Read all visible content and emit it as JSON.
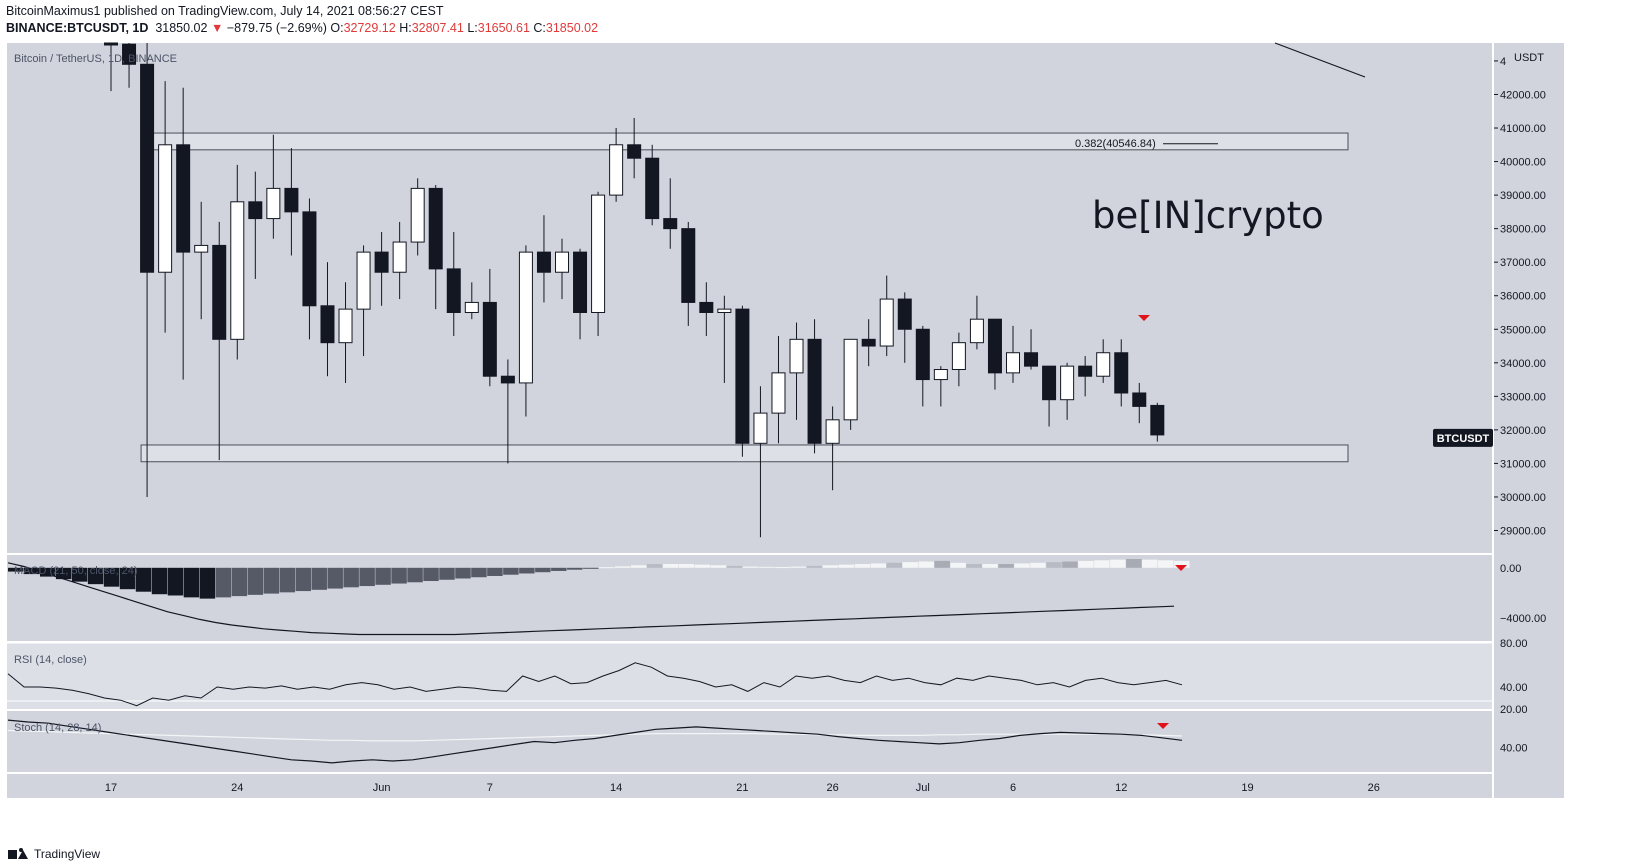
{
  "header": {
    "publisher": "BitcoinMaximus1",
    "published_line": " published on TradingView.com, July 14, 2021 08:56:27 CEST",
    "symbol": "BINANCE:BTCUSDT, 1D",
    "last": "31850.02",
    "change": "−879.75 (−2.69%)",
    "o_label": "O:",
    "o_value": "32729.12",
    "h_label": "H:",
    "h_value": "32807.41",
    "l_label": "L:",
    "l_value": "31650.61",
    "c_label": "C:",
    "c_value": "31850.02"
  },
  "chart_data": {
    "type": "candlestick",
    "title": "Bitcoin / TetherUS, 1D, BINANCE",
    "currency_label": "USDT",
    "price_badge": "BTCUSDT",
    "watermark": "be[IN]crypto",
    "fib_label": "0.382(40546.84)",
    "x_tick_labels": [
      "17",
      "24",
      "Jun",
      "7",
      "14",
      "21",
      "26",
      "Jul",
      "6",
      "12",
      "19",
      "26"
    ],
    "y_tick_labels": [
      "29000.00",
      "30000.00",
      "31000.00",
      "32000.00",
      "33000.00",
      "34000.00",
      "35000.00",
      "36000.00",
      "37000.00",
      "38000.00",
      "39000.00",
      "40000.00",
      "41000.00",
      "42000.00",
      "4"
    ],
    "ylim": [
      28500,
      43500
    ],
    "candles": [
      {
        "date": "2021-05-17",
        "o": 46400,
        "h": 46600,
        "l": 42100,
        "c": 43500
      },
      {
        "date": "2021-05-18",
        "o": 43500,
        "h": 45800,
        "l": 42200,
        "c": 42900
      },
      {
        "date": "2021-05-19",
        "o": 42900,
        "h": 43600,
        "l": 30000,
        "c": 36700
      },
      {
        "date": "2021-05-20",
        "o": 36700,
        "h": 42400,
        "l": 34900,
        "c": 40500
      },
      {
        "date": "2021-05-21",
        "o": 40500,
        "h": 42200,
        "l": 33500,
        "c": 37300
      },
      {
        "date": "2021-05-22",
        "o": 37300,
        "h": 38800,
        "l": 35300,
        "c": 37500
      },
      {
        "date": "2021-05-23",
        "o": 37500,
        "h": 38200,
        "l": 31100,
        "c": 34700
      },
      {
        "date": "2021-05-24",
        "o": 34700,
        "h": 39900,
        "l": 34100,
        "c": 38800
      },
      {
        "date": "2021-05-25",
        "o": 38800,
        "h": 39700,
        "l": 36500,
        "c": 38300
      },
      {
        "date": "2021-05-26",
        "o": 38300,
        "h": 40800,
        "l": 37700,
        "c": 39200
      },
      {
        "date": "2021-05-27",
        "o": 39200,
        "h": 40400,
        "l": 37200,
        "c": 38500
      },
      {
        "date": "2021-05-28",
        "o": 38500,
        "h": 38900,
        "l": 34700,
        "c": 35700
      },
      {
        "date": "2021-05-29",
        "o": 35700,
        "h": 37000,
        "l": 33600,
        "c": 34600
      },
      {
        "date": "2021-05-30",
        "o": 34600,
        "h": 36400,
        "l": 33400,
        "c": 35600
      },
      {
        "date": "2021-05-31",
        "o": 35600,
        "h": 37500,
        "l": 34200,
        "c": 37300
      },
      {
        "date": "2021-06-01",
        "o": 37300,
        "h": 37900,
        "l": 35700,
        "c": 36700
      },
      {
        "date": "2021-06-02",
        "o": 36700,
        "h": 38200,
        "l": 35900,
        "c": 37600
      },
      {
        "date": "2021-06-03",
        "o": 37600,
        "h": 39500,
        "l": 37200,
        "c": 39200
      },
      {
        "date": "2021-06-04",
        "o": 39200,
        "h": 39300,
        "l": 35600,
        "c": 36800
      },
      {
        "date": "2021-06-05",
        "o": 36800,
        "h": 37900,
        "l": 34800,
        "c": 35500
      },
      {
        "date": "2021-06-06",
        "o": 35500,
        "h": 36400,
        "l": 35300,
        "c": 35800
      },
      {
        "date": "2021-06-07",
        "o": 35800,
        "h": 36800,
        "l": 33300,
        "c": 33600
      },
      {
        "date": "2021-06-08",
        "o": 33600,
        "h": 34100,
        "l": 31000,
        "c": 33400
      },
      {
        "date": "2021-06-09",
        "o": 33400,
        "h": 37500,
        "l": 32400,
        "c": 37300
      },
      {
        "date": "2021-06-10",
        "o": 37300,
        "h": 38400,
        "l": 35800,
        "c": 36700
      },
      {
        "date": "2021-06-11",
        "o": 36700,
        "h": 37700,
        "l": 35900,
        "c": 37300
      },
      {
        "date": "2021-06-12",
        "o": 37300,
        "h": 37400,
        "l": 34700,
        "c": 35500
      },
      {
        "date": "2021-06-13",
        "o": 35500,
        "h": 39100,
        "l": 34800,
        "c": 39000
      },
      {
        "date": "2021-06-14",
        "o": 39000,
        "h": 41000,
        "l": 38800,
        "c": 40500
      },
      {
        "date": "2021-06-15",
        "o": 40500,
        "h": 41300,
        "l": 39500,
        "c": 40100
      },
      {
        "date": "2021-06-16",
        "o": 40100,
        "h": 40500,
        "l": 38100,
        "c": 38300
      },
      {
        "date": "2021-06-17",
        "o": 38300,
        "h": 39500,
        "l": 37400,
        "c": 38000
      },
      {
        "date": "2021-06-18",
        "o": 38000,
        "h": 38200,
        "l": 35100,
        "c": 35800
      },
      {
        "date": "2021-06-19",
        "o": 35800,
        "h": 36400,
        "l": 34800,
        "c": 35500
      },
      {
        "date": "2021-06-20",
        "o": 35500,
        "h": 36000,
        "l": 33400,
        "c": 35600
      },
      {
        "date": "2021-06-21",
        "o": 35600,
        "h": 35700,
        "l": 31200,
        "c": 31600
      },
      {
        "date": "2021-06-22",
        "o": 31600,
        "h": 33300,
        "l": 28800,
        "c": 32500
      },
      {
        "date": "2021-06-23",
        "o": 32500,
        "h": 34800,
        "l": 31600,
        "c": 33700
      },
      {
        "date": "2021-06-24",
        "o": 33700,
        "h": 35200,
        "l": 32300,
        "c": 34700
      },
      {
        "date": "2021-06-25",
        "o": 34700,
        "h": 35300,
        "l": 31300,
        "c": 31600
      },
      {
        "date": "2021-06-26",
        "o": 31600,
        "h": 32700,
        "l": 30200,
        "c": 32300
      },
      {
        "date": "2021-06-27",
        "o": 32300,
        "h": 34700,
        "l": 32000,
        "c": 34700
      },
      {
        "date": "2021-06-28",
        "o": 34700,
        "h": 35300,
        "l": 33900,
        "c": 34500
      },
      {
        "date": "2021-06-29",
        "o": 34500,
        "h": 36600,
        "l": 34200,
        "c": 35900
      },
      {
        "date": "2021-06-30",
        "o": 35900,
        "h": 36100,
        "l": 34000,
        "c": 35000
      },
      {
        "date": "2021-07-01",
        "o": 35000,
        "h": 35100,
        "l": 32700,
        "c": 33500
      },
      {
        "date": "2021-07-02",
        "o": 33500,
        "h": 33900,
        "l": 32700,
        "c": 33800
      },
      {
        "date": "2021-07-03",
        "o": 33800,
        "h": 34900,
        "l": 33300,
        "c": 34600
      },
      {
        "date": "2021-07-04",
        "o": 34600,
        "h": 36000,
        "l": 34400,
        "c": 35300
      },
      {
        "date": "2021-07-05",
        "o": 35300,
        "h": 35300,
        "l": 33200,
        "c": 33700
      },
      {
        "date": "2021-07-06",
        "o": 33700,
        "h": 35100,
        "l": 33400,
        "c": 34300
      },
      {
        "date": "2021-07-07",
        "o": 34300,
        "h": 35000,
        "l": 33800,
        "c": 33900
      },
      {
        "date": "2021-07-08",
        "o": 33900,
        "h": 33900,
        "l": 32100,
        "c": 32900
      },
      {
        "date": "2021-07-09",
        "o": 32900,
        "h": 34000,
        "l": 32300,
        "c": 33900
      },
      {
        "date": "2021-07-10",
        "o": 33900,
        "h": 34200,
        "l": 33000,
        "c": 33600
      },
      {
        "date": "2021-07-11",
        "o": 33600,
        "h": 34700,
        "l": 33400,
        "c": 34300
      },
      {
        "date": "2021-07-12",
        "o": 34300,
        "h": 34700,
        "l": 32700,
        "c": 33100
      },
      {
        "date": "2021-07-13",
        "o": 33100,
        "h": 33400,
        "l": 32200,
        "c": 32700
      },
      {
        "date": "2021-07-14",
        "o": 32729.12,
        "h": 32807.41,
        "l": 31650.61,
        "c": 31850.02
      }
    ],
    "zones": [
      {
        "name": "resistance",
        "from": 40350,
        "to": 40850
      },
      {
        "name": "support",
        "from": 31050,
        "to": 31550
      }
    ],
    "fib_level": 40546.84,
    "macd": {
      "label": "MACD (21, 50, close, 24)",
      "tick_labels": [
        "0.00",
        "−4000.00"
      ],
      "range": [
        -5500,
        700
      ],
      "hist": [
        -300,
        -500,
        -700,
        -900,
        -1100,
        -1300,
        -1500,
        -1700,
        -1900,
        -2100,
        -2200,
        -2350,
        -2450,
        -2350,
        -2250,
        -2150,
        -2050,
        -1950,
        -1850,
        -1750,
        -1650,
        -1550,
        -1450,
        -1350,
        -1250,
        -1150,
        -1050,
        -950,
        -850,
        -750,
        -650,
        -550,
        -450,
        -350,
        -250,
        -150,
        -50,
        50,
        120,
        200,
        300,
        300,
        300,
        250,
        200,
        150,
        100,
        80,
        60,
        100,
        150,
        200,
        250,
        300,
        350,
        400,
        450,
        500,
        550,
        400,
        300,
        300,
        300,
        350,
        400,
        450,
        500,
        550,
        600,
        650,
        700,
        650,
        600,
        550
      ],
      "signal": [
        400,
        100,
        -300,
        -700,
        -1100,
        -1500,
        -1900,
        -2300,
        -2700,
        -3100,
        -3500,
        -3800,
        -4100,
        -4350,
        -4550,
        -4700,
        -4850,
        -4950,
        -5050,
        -5150,
        -5200,
        -5250,
        -5300,
        -5300,
        -5300,
        -5300,
        -5300,
        -5300,
        -5300,
        -5250,
        -5200,
        -5150,
        -5100,
        -5050,
        -5000,
        -4950,
        -4900,
        -4850,
        -4800,
        -4750,
        -4700,
        -4650,
        -4600,
        -4550,
        -4500,
        -4450,
        -4400,
        -4350,
        -4300,
        -4250,
        -4200,
        -4150,
        -4100,
        -4050,
        -4000,
        -3950,
        -3900,
        -3850,
        -3800,
        -3750,
        -3700,
        -3650,
        -3600,
        -3550,
        -3500,
        -3450,
        -3400,
        -3350,
        -3300,
        -3250,
        -3200,
        -3150,
        -3100,
        -3050
      ]
    },
    "rsi": {
      "label": "RSI (14, close)",
      "tick_labels": [
        "80.00",
        "40.00",
        "20.00"
      ],
      "range": [
        20,
        80
      ],
      "values": [
        52,
        40,
        40,
        39,
        37,
        34,
        30,
        28,
        23,
        30,
        28,
        32,
        30,
        40,
        38,
        40,
        39,
        41,
        38,
        40,
        38,
        42,
        44,
        42,
        38,
        40,
        36,
        38,
        40,
        39,
        37,
        36,
        50,
        45,
        50,
        43,
        44,
        50,
        55,
        62,
        58,
        50,
        48,
        45,
        40,
        42,
        36,
        44,
        40,
        50,
        48,
        50,
        46,
        44,
        50,
        46,
        48,
        44,
        42,
        48,
        46,
        50,
        48,
        46,
        42,
        44,
        40,
        46,
        48,
        44,
        42,
        44,
        46,
        42
      ]
    },
    "stoch": {
      "label": "Stoch (14, 28, 14)",
      "tick_labels": [
        "40.00"
      ],
      "range": [
        0,
        100
      ],
      "k": [
        85,
        82,
        80,
        75,
        70,
        65,
        60,
        55,
        50,
        45,
        40,
        35,
        30,
        25,
        20,
        18,
        15,
        18,
        20,
        18,
        20,
        25,
        30,
        35,
        40,
        45,
        50,
        48,
        52,
        55,
        60,
        65,
        70,
        72,
        74,
        72,
        70,
        68,
        66,
        64,
        62,
        58,
        55,
        52,
        50,
        48,
        46,
        48,
        52,
        55,
        60,
        63,
        65,
        64,
        63,
        62,
        60,
        56,
        52
      ],
      "d": [
        68,
        67,
        66,
        65,
        64,
        63,
        62,
        61,
        60,
        59,
        58,
        57,
        56,
        55,
        54,
        53,
        52,
        52,
        51,
        51,
        51,
        52,
        53,
        54,
        55,
        56,
        57,
        58,
        59,
        60,
        61,
        62,
        63,
        63,
        63,
        63,
        63,
        63,
        62,
        62,
        61,
        61,
        60,
        60,
        60,
        60,
        61,
        61,
        62,
        62,
        62,
        62,
        62,
        62,
        62,
        62,
        61,
        60,
        59
      ]
    },
    "grid": false
  },
  "footer": {
    "brand": "TradingView"
  }
}
